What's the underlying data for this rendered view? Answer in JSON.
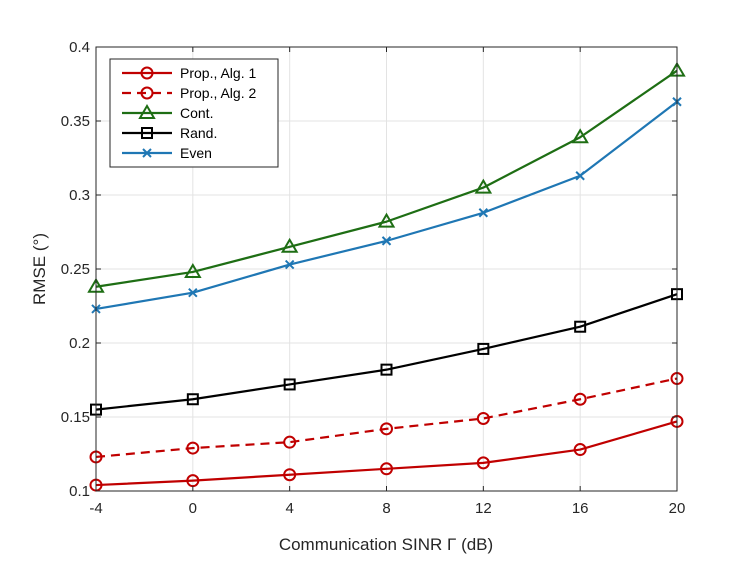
{
  "chart_data": {
    "type": "line",
    "title": "",
    "xlabel": "Communication SINR Γ (dB)",
    "ylabel": "RMSE (°)",
    "x": [
      -4,
      0,
      4,
      8,
      12,
      16,
      20
    ],
    "x_tick_labels": [
      "-4",
      "0",
      "4",
      "8",
      "12",
      "16",
      "20"
    ],
    "xlim": [
      -4,
      20
    ],
    "ylim": [
      0.1,
      0.4
    ],
    "y_ticks": [
      0.1,
      0.15,
      0.2,
      0.25,
      0.3,
      0.35,
      0.4
    ],
    "y_tick_labels": [
      "0.1",
      "0.15",
      "0.2",
      "0.25",
      "0.3",
      "0.35",
      "0.4"
    ],
    "grid": true,
    "legend_position": "top-left",
    "series": [
      {
        "name": "Prop., Alg. 1",
        "color": "#c00000",
        "dash": "solid",
        "marker": "circle",
        "values": [
          0.104,
          0.107,
          0.111,
          0.115,
          0.119,
          0.128,
          0.147
        ]
      },
      {
        "name": "Prop., Alg. 2",
        "color": "#c00000",
        "dash": "dashed",
        "marker": "circle",
        "values": [
          0.123,
          0.129,
          0.133,
          0.142,
          0.149,
          0.162,
          0.176
        ]
      },
      {
        "name": "Cont.",
        "color": "#1e6e14",
        "dash": "solid",
        "marker": "triangle",
        "values": [
          0.238,
          0.248,
          0.265,
          0.282,
          0.305,
          0.339,
          0.384
        ]
      },
      {
        "name": "Rand.",
        "color": "#000000",
        "dash": "solid",
        "marker": "square",
        "values": [
          0.155,
          0.162,
          0.172,
          0.182,
          0.196,
          0.211,
          0.233
        ]
      },
      {
        "name": "Even",
        "color": "#1f77b4",
        "dash": "solid",
        "marker": "x",
        "values": [
          0.223,
          0.234,
          0.253,
          0.269,
          0.288,
          0.313,
          0.363
        ]
      }
    ]
  }
}
